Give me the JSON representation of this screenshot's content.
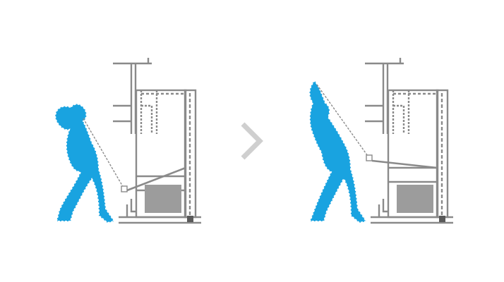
{
  "diagram": {
    "steps": [
      {
        "id": "step-1",
        "pose": "arms-bent-behind-head"
      },
      {
        "id": "step-2",
        "pose": "arms-extended-overhead"
      }
    ],
    "transition_icon": "chevron-right-icon",
    "colors": {
      "figure": "#19a3e0",
      "figure_outline": "#ffffff",
      "machine_line": "#8a8a8a",
      "machine_fill": "#9c9c9c",
      "chevron": "#cfcfcf",
      "background": "#ffffff"
    }
  }
}
